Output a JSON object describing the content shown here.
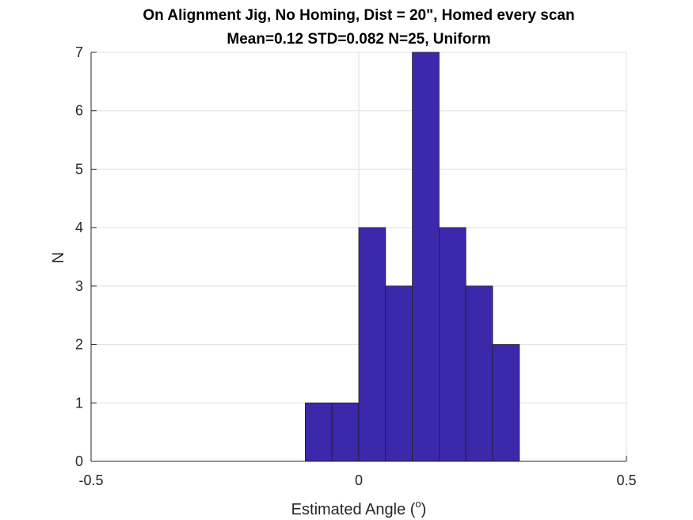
{
  "chart_data": {
    "type": "bar",
    "title": "On Alignment Jig, No Homing, Dist = 20\", Homed every scan",
    "subtitle": "Mean=0.12 STD=0.082 N=25, Uniform",
    "xlabel": "Estimated Angle (",
    "xlabel_sup": "o",
    "xlabel_end": ")",
    "ylabel": "N",
    "xlim": [
      -0.5,
      0.5
    ],
    "ylim": [
      0,
      7
    ],
    "xticks": [
      "-0.5",
      "0",
      "0.5"
    ],
    "xtick_values": [
      -0.5,
      0,
      0.5
    ],
    "yticks": [
      "0",
      "1",
      "2",
      "3",
      "4",
      "5",
      "6",
      "7"
    ],
    "ytick_values": [
      0,
      1,
      2,
      3,
      4,
      5,
      6,
      7
    ],
    "grid": true,
    "bar_color": "#3c28aa",
    "bins": [
      {
        "left": -0.1,
        "right": -0.05,
        "count": 1
      },
      {
        "left": -0.05,
        "right": 0.0,
        "count": 1
      },
      {
        "left": 0.0,
        "right": 0.05,
        "count": 4
      },
      {
        "left": 0.05,
        "right": 0.1,
        "count": 3
      },
      {
        "left": 0.1,
        "right": 0.15,
        "count": 7
      },
      {
        "left": 0.15,
        "right": 0.2,
        "count": 4
      },
      {
        "left": 0.2,
        "right": 0.25,
        "count": 3
      },
      {
        "left": 0.25,
        "right": 0.3,
        "count": 2
      }
    ]
  }
}
